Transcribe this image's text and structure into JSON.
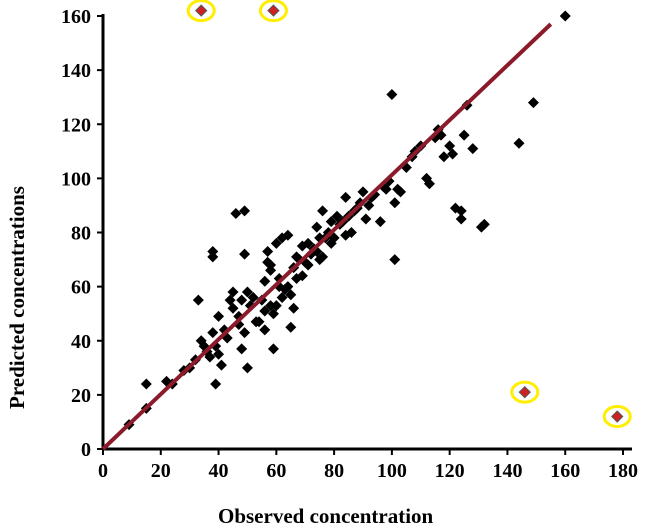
{
  "chart_data": {
    "type": "scatter",
    "xlabel": "Observed concentration",
    "ylabel": "Predicted concentrations",
    "xlim": [
      0,
      180
    ],
    "ylim": [
      0,
      160
    ],
    "xticks": [
      "0",
      "20",
      "40",
      "60",
      "80",
      "100",
      "120",
      "140",
      "160",
      "180"
    ],
    "yticks": [
      "0",
      "20",
      "40",
      "60",
      "80",
      "100",
      "120",
      "140",
      "160"
    ],
    "grid": false,
    "legend": "none",
    "series": [
      {
        "marker": "diamond",
        "color": "#000000",
        "points": [
          [
            9,
            9
          ],
          [
            15,
            15
          ],
          [
            15,
            24
          ],
          [
            22,
            25
          ],
          [
            24,
            24
          ],
          [
            28,
            29
          ],
          [
            30,
            30
          ],
          [
            32,
            33
          ],
          [
            33,
            55
          ],
          [
            34,
            40
          ],
          [
            35,
            38
          ],
          [
            36,
            36
          ],
          [
            37,
            34
          ],
          [
            38,
            73
          ],
          [
            38,
            71
          ],
          [
            38,
            43
          ],
          [
            39,
            38
          ],
          [
            39,
            24
          ],
          [
            40,
            35
          ],
          [
            40,
            49
          ],
          [
            41,
            31
          ],
          [
            42,
            44
          ],
          [
            43,
            41
          ],
          [
            44,
            55
          ],
          [
            45,
            58
          ],
          [
            45,
            52
          ],
          [
            46,
            87
          ],
          [
            47,
            46
          ],
          [
            47,
            49
          ],
          [
            48,
            37
          ],
          [
            48,
            55
          ],
          [
            49,
            88
          ],
          [
            49,
            43
          ],
          [
            49,
            72
          ],
          [
            50,
            30
          ],
          [
            50,
            58
          ],
          [
            51,
            53
          ],
          [
            52,
            56
          ],
          [
            53,
            47
          ],
          [
            54,
            47
          ],
          [
            55,
            55
          ],
          [
            56,
            51
          ],
          [
            56,
            62
          ],
          [
            56,
            44
          ],
          [
            57,
            69
          ],
          [
            57,
            73
          ],
          [
            58,
            66
          ],
          [
            58,
            53
          ],
          [
            58,
            68
          ],
          [
            59,
            37
          ],
          [
            59,
            50
          ],
          [
            60,
            53
          ],
          [
            60,
            76
          ],
          [
            61,
            63
          ],
          [
            61,
            60
          ],
          [
            62,
            78
          ],
          [
            62,
            56
          ],
          [
            63,
            59
          ],
          [
            64,
            60
          ],
          [
            64,
            79
          ],
          [
            65,
            45
          ],
          [
            65,
            57
          ],
          [
            66,
            67
          ],
          [
            66,
            52
          ],
          [
            67,
            63
          ],
          [
            67,
            71
          ],
          [
            68,
            70
          ],
          [
            69,
            64
          ],
          [
            69,
            75
          ],
          [
            70,
            69
          ],
          [
            71,
            68
          ],
          [
            71,
            76
          ],
          [
            72,
            72
          ],
          [
            73,
            74
          ],
          [
            74,
            73
          ],
          [
            74,
            82
          ],
          [
            75,
            78
          ],
          [
            75,
            70
          ],
          [
            76,
            71
          ],
          [
            76,
            88
          ],
          [
            77,
            78
          ],
          [
            78,
            80
          ],
          [
            79,
            76
          ],
          [
            79,
            84
          ],
          [
            80,
            78
          ],
          [
            81,
            86
          ],
          [
            82,
            83
          ],
          [
            83,
            84
          ],
          [
            84,
            79
          ],
          [
            84,
            93
          ],
          [
            85,
            86
          ],
          [
            86,
            80
          ],
          [
            87,
            88
          ],
          [
            88,
            89
          ],
          [
            89,
            91
          ],
          [
            90,
            95
          ],
          [
            91,
            85
          ],
          [
            92,
            90
          ],
          [
            93,
            93
          ],
          [
            94,
            94
          ],
          [
            96,
            84
          ],
          [
            97,
            97
          ],
          [
            98,
            96
          ],
          [
            99,
            99
          ],
          [
            100,
            131
          ],
          [
            101,
            70
          ],
          [
            101,
            91
          ],
          [
            102,
            96
          ],
          [
            103,
            95
          ],
          [
            105,
            104
          ],
          [
            107,
            108
          ],
          [
            108,
            110
          ],
          [
            110,
            112
          ],
          [
            112,
            100
          ],
          [
            113,
            98
          ],
          [
            115,
            115
          ],
          [
            116,
            118
          ],
          [
            117,
            116
          ],
          [
            118,
            108
          ],
          [
            120,
            112
          ],
          [
            121,
            109
          ],
          [
            122,
            89
          ],
          [
            124,
            88
          ],
          [
            124,
            85
          ],
          [
            125,
            116
          ],
          [
            126,
            127
          ],
          [
            128,
            111
          ],
          [
            131,
            82
          ],
          [
            132,
            83
          ],
          [
            144,
            113
          ],
          [
            149,
            128
          ],
          [
            160,
            160
          ]
        ]
      },
      {
        "name": "",
        "marker": "diamond",
        "color": "#cc2222",
        "highlight": "#ffee00",
        "points": [
          [
            34,
            162
          ],
          [
            59,
            162
          ],
          [
            146,
            21
          ],
          [
            178,
            12
          ]
        ]
      }
    ],
    "fit_line": {
      "color": "#8b1a2b",
      "from": [
        0,
        0
      ],
      "to": [
        155,
        157
      ]
    }
  }
}
